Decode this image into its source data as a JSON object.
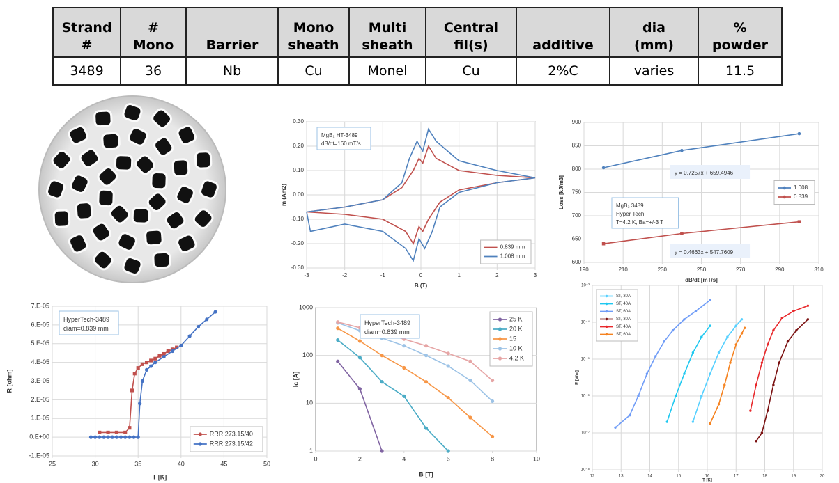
{
  "table": {
    "headers": [
      [
        "Strand",
        "#"
      ],
      [
        "#",
        "Mono"
      ],
      [
        "Barrier"
      ],
      [
        "Mono",
        "sheath"
      ],
      [
        "Multi",
        "sheath"
      ],
      [
        "Central",
        "fil(s)"
      ],
      [
        "additive"
      ],
      [
        "dia",
        "(mm)"
      ],
      [
        "%",
        "powder"
      ]
    ],
    "row": [
      "3489",
      "36",
      "Nb",
      "Cu",
      "Monel",
      "Cu",
      "2%C",
      "varies",
      "11.5"
    ]
  },
  "chart_data": [
    {
      "type": "line",
      "xlabel": "B (T)",
      "ylabel": "m (Am2)",
      "xlim": [
        -3,
        3
      ],
      "xticks": [
        -3,
        -2,
        -1,
        0,
        1,
        2,
        3
      ],
      "ylim": [
        -0.3,
        0.3
      ],
      "yticks": [
        {
          "value": -0.3,
          "label": "-0.30"
        },
        {
          "value": -0.2,
          "label": "-0.20"
        },
        {
          "value": -0.1,
          "label": "-0.10"
        },
        {
          "value": 0,
          "label": "0.00"
        },
        {
          "value": 0.1,
          "label": "0.10"
        },
        {
          "value": 0.2,
          "label": "0.20"
        },
        {
          "value": 0.3,
          "label": "0.30"
        }
      ],
      "grid": true,
      "xgrid": true,
      "legend": "bottom-right",
      "annotations": [
        {
          "lines": [
            "MgB₂ HT-3489",
            "dB/dt=160 mT/s"
          ]
        }
      ],
      "series": [
        {
          "name": "0.839 mm",
          "color": "#c0504d",
          "x": [
            -3,
            -2,
            -1,
            -0.5,
            -0.2,
            -0.05,
            0.05,
            0.2,
            0.4,
            1,
            2,
            3,
            2,
            1,
            0.5,
            0.2,
            0.05,
            -0.05,
            -0.2,
            -0.4,
            -1,
            -2,
            -3
          ],
          "values": [
            -0.07,
            -0.05,
            -0.02,
            0.03,
            0.1,
            0.15,
            0.13,
            0.2,
            0.15,
            0.1,
            0.08,
            0.07,
            0.05,
            0.02,
            -0.03,
            -0.1,
            -0.15,
            -0.13,
            -0.2,
            -0.15,
            -0.1,
            -0.08,
            -0.07
          ]
        },
        {
          "name": "1.008 mm",
          "color": "#4f81bd",
          "x": [
            -3,
            -2,
            -1,
            -0.5,
            -0.3,
            -0.1,
            0.05,
            0.2,
            0.4,
            1,
            2,
            3,
            2,
            1,
            0.5,
            0.3,
            0.1,
            -0.05,
            -0.2,
            -0.4,
            -1,
            -2,
            -2.9,
            -3
          ],
          "values": [
            -0.07,
            -0.05,
            -0.02,
            0.05,
            0.15,
            0.22,
            0.18,
            0.27,
            0.22,
            0.14,
            0.1,
            0.07,
            0.05,
            0.01,
            -0.05,
            -0.15,
            -0.22,
            -0.18,
            -0.27,
            -0.22,
            -0.15,
            -0.12,
            -0.15,
            -0.07
          ]
        }
      ]
    },
    {
      "type": "line",
      "xlabel": "dB/dt [mT/s]",
      "ylabel": "Loss [kJ/m3]",
      "xlim": [
        190,
        310
      ],
      "xticks": [
        190,
        210,
        230,
        250,
        270,
        290,
        310
      ],
      "ylim": [
        600,
        900
      ],
      "yticks": [
        600,
        650,
        700,
        750,
        800,
        850,
        900
      ],
      "grid": true,
      "xgrid": true,
      "legend": "right",
      "markers": true,
      "annotations": [
        {
          "lines": [
            "y = 0.7257x + 659.4946"
          ],
          "color": "#2f5597"
        },
        {
          "lines": [
            "y = 0.4663x + 547.7609"
          ],
          "color": "#c0504d"
        },
        {
          "lines": [
            "MgB₂ 3489",
            "Hyper Tech",
            "T=4.2 K, Ba=+/-3 T"
          ]
        }
      ],
      "series": [
        {
          "name": "1.008",
          "color": "#4f81bd",
          "marker": "circle",
          "x": [
            200,
            240,
            300
          ],
          "values": [
            803,
            840,
            876
          ]
        },
        {
          "name": "0.839",
          "color": "#c0504d",
          "marker": "square",
          "x": [
            200,
            240,
            300
          ],
          "values": [
            640,
            662,
            687
          ]
        }
      ]
    },
    {
      "type": "line",
      "xlabel": "T [K]",
      "ylabel": "R [ohm]",
      "xlim": [
        25,
        50
      ],
      "xticks": [
        25,
        30,
        35,
        40,
        45,
        50
      ],
      "ylim": [
        -1e-05,
        7e-05
      ],
      "yticks": [
        {
          "value": -1e-05,
          "label": "-1.E-05"
        },
        {
          "value": 0,
          "label": "0.E+00"
        },
        {
          "value": 1e-05,
          "label": "1.E-05"
        },
        {
          "value": 2e-05,
          "label": "2.E-05"
        },
        {
          "value": 3e-05,
          "label": "3.E-05"
        },
        {
          "value": 4e-05,
          "label": "4.E-05"
        },
        {
          "value": 5e-05,
          "label": "5.E-05"
        },
        {
          "value": 6e-05,
          "label": "6.E-05"
        },
        {
          "value": 7e-05,
          "label": "7.E-05"
        }
      ],
      "grid": true,
      "xgrid": true,
      "legend": "bottom-right",
      "markers": true,
      "annotations": [
        {
          "lines": [
            "HyperTech-3489",
            "diam=0.839 mm"
          ]
        }
      ],
      "series": [
        {
          "name": "RRR 273.15/40",
          "color": "#c0504d",
          "marker": "square",
          "x": [
            30.5,
            31.5,
            32.5,
            33.5,
            34,
            34.3,
            34.6,
            35,
            35.5,
            36,
            36.5,
            37,
            37.5,
            38,
            38.5,
            39,
            39.5
          ],
          "values": [
            2.5e-06,
            2.5e-06,
            2.5e-06,
            2.5e-06,
            5e-06,
            2.5e-05,
            3.4e-05,
            3.7e-05,
            3.9e-05,
            4e-05,
            4.1e-05,
            4.2e-05,
            4.35e-05,
            4.45e-05,
            4.6e-05,
            4.7e-05,
            4.8e-05
          ]
        },
        {
          "name": "RRR 273.15/42",
          "color": "#4472c4",
          "marker": "circle",
          "x": [
            29.5,
            30,
            30.5,
            31,
            31.5,
            32,
            32.5,
            33,
            33.5,
            34,
            34.5,
            35,
            35.2,
            35.5,
            36,
            36.5,
            37,
            38,
            39,
            40,
            41,
            42,
            43,
            44
          ],
          "values": [
            0,
            0,
            0,
            0,
            0,
            0,
            0,
            0,
            0,
            0,
            0,
            0,
            1.8e-05,
            3e-05,
            3.6e-05,
            3.8e-05,
            4e-05,
            4.3e-05,
            4.6e-05,
            4.9e-05,
            5.4e-05,
            5.9e-05,
            6.3e-05,
            6.7e-05
          ]
        }
      ]
    },
    {
      "type": "line",
      "xlabel": "B [T]",
      "ylabel": "Ic [A]",
      "xlim": [
        0,
        10
      ],
      "xticks": [
        0,
        2,
        4,
        6,
        8,
        10
      ],
      "ylim": [
        1,
        1000
      ],
      "yticks": [
        1,
        10,
        100,
        1000
      ],
      "ylog": true,
      "grid": true,
      "legend": "top-right",
      "markers": true,
      "annotations": [
        {
          "lines": [
            "HyperTech-3489",
            "diam=0.839 mm"
          ]
        }
      ],
      "series": [
        {
          "name": "25 K",
          "color": "#8064a2",
          "marker": "circle",
          "x": [
            1,
            2,
            3
          ],
          "values": [
            75,
            20,
            1
          ]
        },
        {
          "name": "20 K",
          "color": "#4bacc6",
          "marker": "circle",
          "x": [
            1,
            2,
            3,
            4,
            5,
            6
          ],
          "values": [
            210,
            90,
            28,
            14,
            3,
            1
          ]
        },
        {
          "name": "15",
          "color": "#f79646",
          "marker": "circle",
          "x": [
            1,
            2,
            3,
            4,
            5,
            6,
            7,
            8
          ],
          "values": [
            370,
            200,
            100,
            55,
            28,
            13,
            5,
            2
          ]
        },
        {
          "name": "10 K",
          "color": "#9dc3e6",
          "marker": "circle",
          "x": [
            1,
            2,
            3,
            4,
            5,
            6,
            7,
            8
          ],
          "values": [
            480,
            330,
            230,
            160,
            100,
            60,
            30,
            11
          ]
        },
        {
          "name": "4.2 K",
          "color": "#e6a5a5",
          "marker": "circle",
          "x": [
            1,
            2,
            3,
            4,
            5,
            6,
            7,
            8
          ],
          "values": [
            500,
            380,
            290,
            220,
            160,
            110,
            75,
            30
          ]
        }
      ]
    },
    {
      "type": "line",
      "xlabel": "T [K]",
      "ylabel": "E [V/m]",
      "xlim": [
        12,
        20
      ],
      "xticks": [
        12,
        13,
        14,
        15,
        16,
        17,
        18,
        19,
        20
      ],
      "ylim": [
        1e-08,
        0.001
      ],
      "yticks": [
        {
          "value": 1e-08,
          "label": "10⁻⁸"
        },
        {
          "value": 1e-07,
          "label": "10⁻⁷"
        },
        {
          "value": 1e-06,
          "label": "10⁻⁶"
        },
        {
          "value": 1e-05,
          "label": "10⁻⁵"
        },
        {
          "value": 0.0001,
          "label": "10⁻⁴"
        },
        {
          "value": 0.001,
          "label": "10⁻³"
        }
      ],
      "ylog": true,
      "grid": true,
      "xgrid": true,
      "legend": "top-left",
      "markers": true,
      "series": [
        {
          "name": "ST, 30A",
          "color": "#55d0ff",
          "marker": "circle",
          "x": [
            15.5,
            15.8,
            16.1,
            16.4,
            16.7,
            17.0,
            17.2
          ],
          "values": [
            2e-07,
            1e-06,
            4e-06,
            1.5e-05,
            4e-05,
            8e-05,
            0.00012
          ]
        },
        {
          "name": "ST, 40A",
          "color": "#1ec8f0",
          "marker": "circle",
          "x": [
            14.6,
            14.9,
            15.2,
            15.5,
            15.8,
            16.1
          ],
          "values": [
            2e-07,
            1e-06,
            4e-06,
            1.5e-05,
            4e-05,
            8e-05
          ]
        },
        {
          "name": "ST, 60A",
          "color": "#6f9cf7",
          "marker": "circle",
          "x": [
            12.8,
            13.3,
            13.6,
            13.9,
            14.2,
            14.5,
            14.8,
            15.2,
            15.6,
            16.1
          ],
          "values": [
            1.4e-07,
            3e-07,
            1e-06,
            4e-06,
            1.2e-05,
            3e-05,
            6e-05,
            0.00012,
            0.0002,
            0.0004
          ]
        },
        {
          "name": "ST, 30A",
          "color": "#7a1010",
          "marker": "circle",
          "x": [
            17.7,
            17.9,
            18.1,
            18.3,
            18.5,
            18.8,
            19.1,
            19.5
          ],
          "values": [
            6e-08,
            1e-07,
            4e-07,
            2e-06,
            8e-06,
            3e-05,
            6e-05,
            0.00012
          ]
        },
        {
          "name": "ST, 40A",
          "color": "#e8282b",
          "marker": "circle",
          "x": [
            17.5,
            17.7,
            17.9,
            18.1,
            18.3,
            18.6,
            19.0,
            19.5
          ],
          "values": [
            4e-07,
            2e-06,
            8e-06,
            2.5e-05,
            6e-05,
            0.00013,
            0.0002,
            0.00028
          ]
        },
        {
          "name": "ST, 60A",
          "color": "#f5821f",
          "marker": "circle",
          "x": [
            16.1,
            16.4,
            16.6,
            16.8,
            17.0,
            17.2,
            17.3
          ],
          "values": [
            1.8e-07,
            6e-07,
            2e-06,
            8e-06,
            2.5e-05,
            5e-05,
            7e-05
          ]
        }
      ]
    }
  ]
}
